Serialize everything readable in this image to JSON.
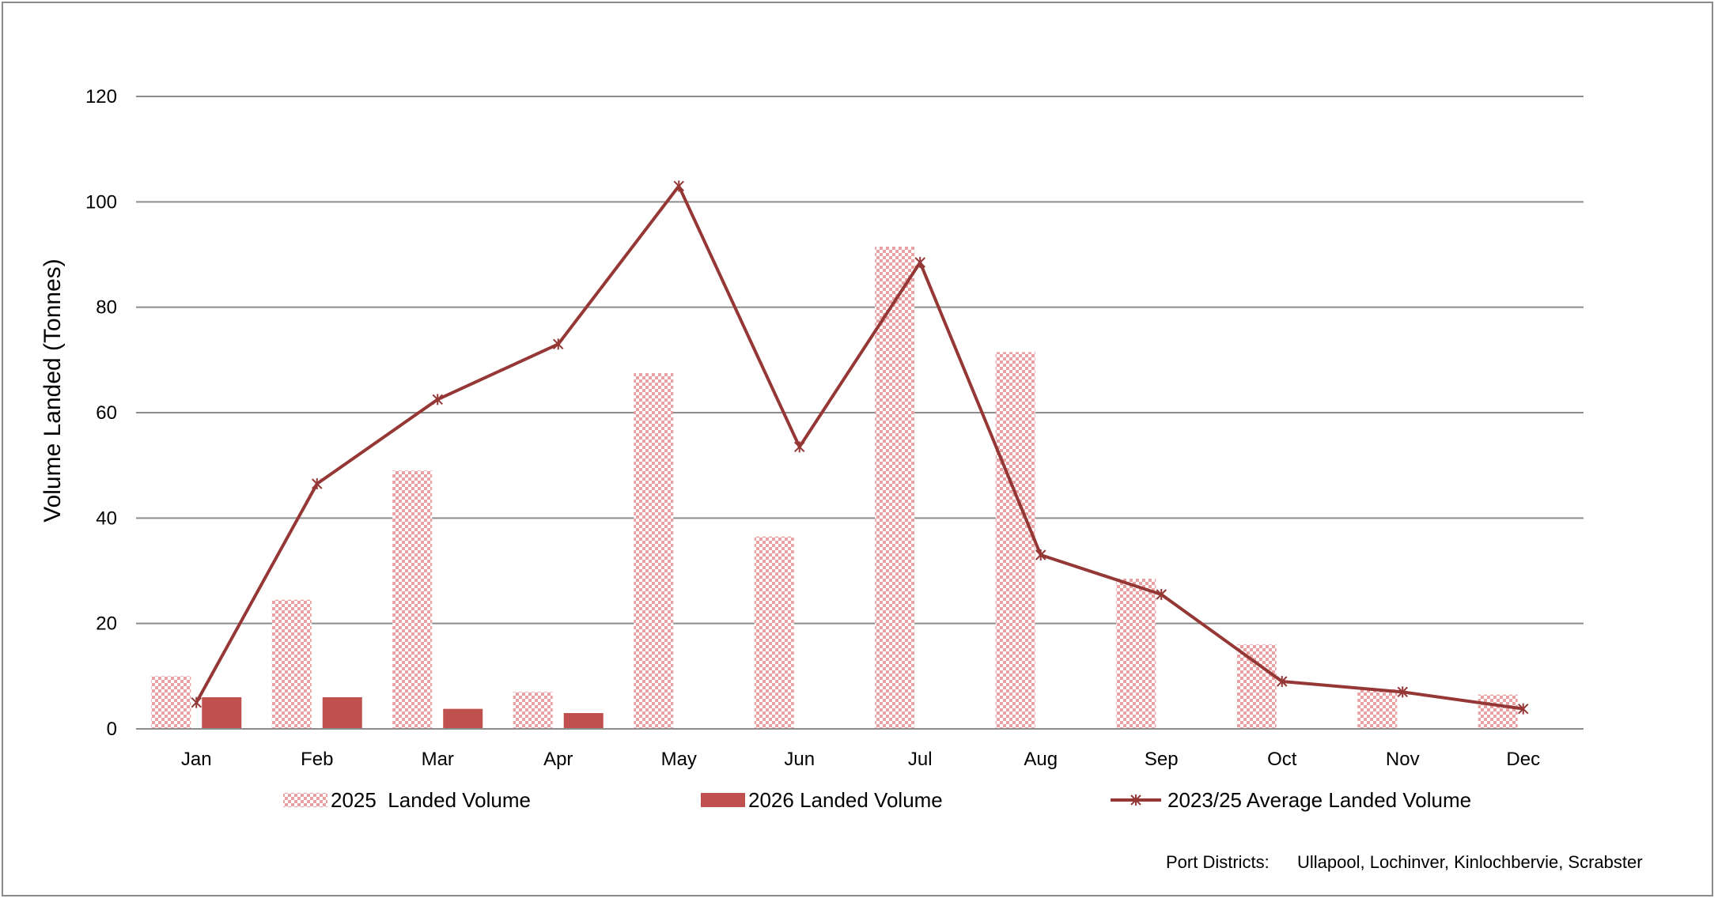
{
  "chart_data": {
    "type": "bar",
    "categories": [
      "Jan",
      "Feb",
      "Mar",
      "Apr",
      "May",
      "Jun",
      "Jul",
      "Aug",
      "Sep",
      "Oct",
      "Nov",
      "Dec"
    ],
    "series": [
      {
        "name": "2025  Landed Volume",
        "kind": "bar",
        "pattern": "checker",
        "color": "#e8a0a0",
        "values": [
          10,
          24.5,
          49,
          7,
          67.5,
          36.5,
          91.5,
          71.5,
          28.5,
          16,
          7.5,
          6.5
        ]
      },
      {
        "name": "2026 Landed Volume",
        "kind": "bar",
        "pattern": "solid",
        "color": "#c0504d",
        "values": [
          6,
          6,
          3.8,
          3,
          null,
          null,
          null,
          null,
          null,
          null,
          null,
          null
        ]
      },
      {
        "name": "2023/25 Average Landed Volume",
        "kind": "line",
        "marker": "star",
        "color": "#953735",
        "values": [
          5,
          46.5,
          62.5,
          73,
          103,
          53.5,
          88.5,
          33,
          25.5,
          9,
          7,
          3.8
        ]
      }
    ],
    "ylabel": "Volume Landed (Tonnes)",
    "xlabel": "",
    "ylim": [
      0,
      120
    ],
    "yticks": [
      0,
      20,
      40,
      60,
      80,
      100,
      120
    ],
    "grid": true,
    "legend_position": "bottom"
  },
  "footnote": {
    "label": "Port Districts:",
    "districts": "Ullapool,  Lochinver, Kinlochbervie, Scrabster"
  }
}
